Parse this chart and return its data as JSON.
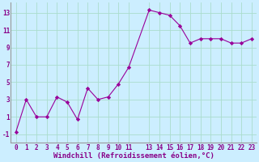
{
  "x": [
    0,
    1,
    2,
    3,
    4,
    5,
    6,
    7,
    8,
    9,
    10,
    11,
    13,
    14,
    15,
    16,
    17,
    18,
    19,
    20,
    21,
    22,
    23
  ],
  "y": [
    -0.7,
    3.0,
    1.0,
    1.0,
    3.3,
    2.7,
    0.7,
    4.3,
    3.0,
    3.3,
    4.8,
    6.7,
    13.3,
    13.0,
    12.7,
    11.5,
    9.5,
    10.0,
    10.0,
    10.0,
    9.5,
    9.5,
    10.0
  ],
  "xlabel": "Windchill (Refroidissement éolien,°C)",
  "xlim": [
    -0.5,
    23.5
  ],
  "ylim": [
    -2.0,
    14.2
  ],
  "yticks": [
    -1,
    1,
    3,
    5,
    7,
    9,
    11,
    13
  ],
  "xticks": [
    0,
    1,
    2,
    3,
    4,
    5,
    6,
    7,
    8,
    9,
    10,
    11,
    13,
    14,
    15,
    16,
    17,
    18,
    19,
    20,
    21,
    22,
    23
  ],
  "line_color": "#990099",
  "marker": "D",
  "marker_size": 2.2,
  "bg_color": "#cceeff",
  "grid_color": "#aaddcc",
  "tick_label_fontsize": 5.5,
  "xlabel_fontsize": 6.5
}
